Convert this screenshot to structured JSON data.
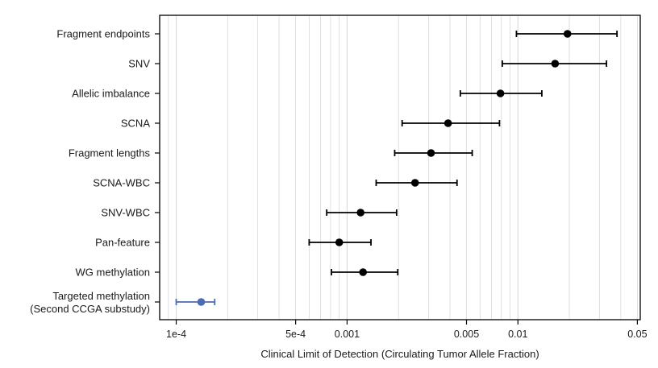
{
  "chart_data": {
    "type": "scatter",
    "subtype": "forest-plot-with-error-bars",
    "title": "",
    "xlabel": "Clinical Limit of Detection (Circulating Tumor Allele Fraction)",
    "ylabel": "",
    "x_scale": "log",
    "xlim": [
      8e-05,
      0.052
    ],
    "x_ticks": [
      {
        "value": 0.0001,
        "label": "1e-4"
      },
      {
        "value": 0.0005,
        "label": "5e-4"
      },
      {
        "value": 0.001,
        "label": "0.001"
      },
      {
        "value": 0.005,
        "label": "0.005"
      },
      {
        "value": 0.01,
        "label": "0.01"
      },
      {
        "value": 0.05,
        "label": "0.05"
      }
    ],
    "grid": true,
    "legend": "none",
    "colors": {
      "default": "#000000",
      "highlight": "#4a6cb3",
      "grid": "#d9d9d9"
    },
    "points": [
      {
        "label": "Fragment endpoints",
        "label2": "",
        "value": 0.0195,
        "lower": 0.0098,
        "upper": 0.038,
        "highlight": false
      },
      {
        "label": "SNV",
        "label2": "",
        "value": 0.0165,
        "lower": 0.0081,
        "upper": 0.033,
        "highlight": false
      },
      {
        "label": "Allelic imbalance",
        "label2": "",
        "value": 0.0079,
        "lower": 0.0046,
        "upper": 0.0138,
        "highlight": false
      },
      {
        "label": "SCNA",
        "label2": "",
        "value": 0.0039,
        "lower": 0.0021,
        "upper": 0.0078,
        "highlight": false
      },
      {
        "label": "Fragment lengths",
        "label2": "",
        "value": 0.0031,
        "lower": 0.0019,
        "upper": 0.0054,
        "highlight": false
      },
      {
        "label": "SCNA-WBC",
        "label2": "",
        "value": 0.0025,
        "lower": 0.00148,
        "upper": 0.0044,
        "highlight": false
      },
      {
        "label": "SNV-WBC",
        "label2": "",
        "value": 0.0012,
        "lower": 0.00076,
        "upper": 0.00195,
        "highlight": false
      },
      {
        "label": "Pan-feature",
        "label2": "",
        "value": 0.0009,
        "lower": 0.0006,
        "upper": 0.00138,
        "highlight": false
      },
      {
        "label": "WG methylation",
        "label2": "",
        "value": 0.00124,
        "lower": 0.00081,
        "upper": 0.00198,
        "highlight": false
      },
      {
        "label": "Targeted methylation",
        "label2": "(Second CCGA substudy)",
        "value": 0.00014,
        "lower": 0.0001,
        "upper": 0.000168,
        "highlight": true
      }
    ]
  }
}
